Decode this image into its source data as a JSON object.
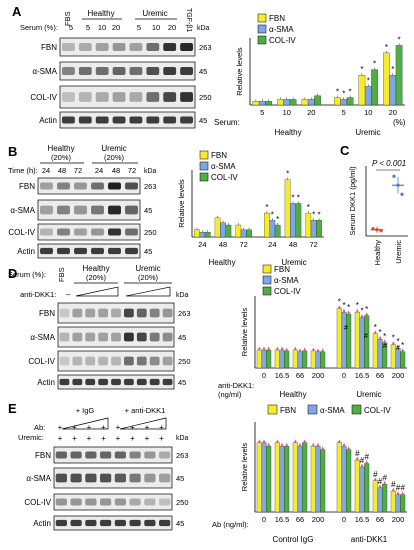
{
  "colors": {
    "fbn": "#f7ec2b",
    "sma": "#7fa7e6",
    "col": "#4fae44",
    "sig": "#d23a5a",
    "dot": "#e8558c"
  },
  "common": {
    "legend": [
      "FBN",
      "α-SMA",
      "COL-IV"
    ],
    "ylabel": "Relative levels",
    "kda": "kDa",
    "healthy": "Healthy",
    "uremic": "Uremic",
    "star": "*",
    "hash": "#"
  },
  "panelA": {
    "letter": "A",
    "blot_labels": [
      "FBN",
      "α-SMA",
      "COL-IV",
      "Actin"
    ],
    "kda_values": [
      "263",
      "45",
      "250",
      "45"
    ],
    "header_fbs": "FBS",
    "header_healthy": "Healthy",
    "header_uremic": "Uremic",
    "header_tgf": "TGF-β1",
    "serum_label": "Serum (%):",
    "serum_values": [
      "5",
      "5",
      "10",
      "20",
      "5",
      "10",
      "20"
    ],
    "chart_serum_label": "Serum:",
    "chart_unit": "(%)"
  },
  "panelB": {
    "letter": "B",
    "blot_labels": [
      "FBN",
      "α-SMA",
      "COL-IV",
      "Actin"
    ],
    "kda_values": [
      "263",
      "45",
      "250",
      "45"
    ],
    "header_healthy": "Healthy",
    "header_healthy2": "(20%)",
    "header_uremic": "Uremic",
    "header_uremic2": "(20%)",
    "time_label": "Time (h):",
    "time_values": [
      "24",
      "48",
      "72",
      "24",
      "48",
      "72"
    ]
  },
  "panelC": {
    "letter": "C",
    "ylabel": "Serum DKK1 (pg/ml)",
    "pvalue": "P < 0.001",
    "xcats": [
      "Healthy",
      "Uremic"
    ]
  },
  "panelD": {
    "letter": "D",
    "blot_labels": [
      "FBN",
      "α-SMA",
      "COL-IV",
      "Actin"
    ],
    "kda_values": [
      "263",
      "45",
      "250",
      "45"
    ],
    "header_fbs": "FBS",
    "header_healthy": "Healthy",
    "header_healthy2": "(20%)",
    "header_uremic": "Uremic",
    "header_uremic2": "(20%)",
    "serum_label": "Serum (%):",
    "anti_label": "anti-DKK1:",
    "anti_dash": "–",
    "chart_anti_label": "anti-DKK1:",
    "chart_unit": "(ng/ml)",
    "chart_x": [
      "0",
      "16.5",
      "66",
      "200",
      "0",
      "16.5",
      "66",
      "200"
    ]
  },
  "panelE": {
    "letter": "E",
    "blot_labels": [
      "FBN",
      "α-SMA",
      "COL-IV",
      "Actin"
    ],
    "kda_values": [
      "263",
      "45",
      "250",
      "45"
    ],
    "igg": "+ IgG",
    "anti": "+ anti-DKK1",
    "ab_label": "Ab:",
    "uremic_label": "Uremic:",
    "plus": "+",
    "chart_ab_label": "Ab (ng/ml):",
    "chart_x": [
      "0",
      "16.5",
      "66",
      "200",
      "0",
      "16.5",
      "66",
      "200"
    ],
    "group1": "Control IgG",
    "group2": "anti-DKK1"
  },
  "chart_data": [
    {
      "panel": "A",
      "type": "bar",
      "categories": [
        "Healthy 5",
        "Healthy 10",
        "Healthy 20",
        "Uremic 5",
        "Uremic 10",
        "Uremic 20"
      ],
      "series": [
        {
          "name": "FBN",
          "values": [
            1.0,
            1.5,
            1.5,
            2.0,
            8.0,
            14.0
          ]
        },
        {
          "name": "α-SMA",
          "values": [
            1.0,
            1.5,
            1.5,
            1.5,
            5.0,
            8.0
          ]
        },
        {
          "name": "COL-IV",
          "values": [
            1.0,
            1.5,
            2.5,
            2.0,
            9.5,
            16.0
          ]
        }
      ],
      "ylim": [
        0,
        18
      ]
    },
    {
      "panel": "B",
      "type": "bar",
      "categories": [
        "Healthy 24",
        "Healthy 48",
        "Healthy 72",
        "Uremic 24",
        "Uremic 48",
        "Uremic 72"
      ],
      "series": [
        {
          "name": "FBN",
          "values": [
            1.5,
            4.0,
            2.5,
            5.0,
            12.0,
            5.0
          ]
        },
        {
          "name": "α-SMA",
          "values": [
            1.0,
            3.0,
            1.5,
            3.5,
            7.0,
            3.5
          ]
        },
        {
          "name": "COL-IV",
          "values": [
            1.0,
            2.5,
            1.5,
            2.5,
            7.0,
            3.5
          ]
        }
      ],
      "ylim": [
        0,
        14
      ]
    },
    {
      "panel": "C",
      "type": "scatter",
      "categories": [
        "Healthy",
        "Uremic"
      ],
      "values": [
        180,
        1450
      ],
      "ylim": [
        0,
        2000
      ]
    },
    {
      "panel": "D",
      "type": "bar",
      "categories": [
        "Healthy 0",
        "Healthy 16.5",
        "Healthy 66",
        "Healthy 200",
        "Uremic 0",
        "Uremic 16.5",
        "Uremic 66",
        "Uremic 200"
      ],
      "series": [
        {
          "name": "FBN",
          "values": [
            1.0,
            1.0,
            1.0,
            0.95,
            3.3,
            3.1,
            1.9,
            1.3
          ]
        },
        {
          "name": "α-SMA",
          "values": [
            1.0,
            1.0,
            0.9,
            0.9,
            3.1,
            2.8,
            1.6,
            1.1
          ]
        },
        {
          "name": "COL-IV",
          "values": [
            1.0,
            0.95,
            0.95,
            0.9,
            3.0,
            2.9,
            1.4,
            0.9
          ]
        }
      ],
      "ylim": [
        0,
        4
      ]
    },
    {
      "panel": "E",
      "type": "bar",
      "categories": [
        "Control IgG 0",
        "Control IgG 16.5",
        "Control IgG 66",
        "Control IgG 200",
        "anti-DKK1 0",
        "anti-DKK1 16.5",
        "anti-DKK1 66",
        "anti-DKK1 200"
      ],
      "series": [
        {
          "name": "FBN",
          "values": [
            1.0,
            1.0,
            1.0,
            0.95,
            1.0,
            0.75,
            0.45,
            0.3
          ]
        },
        {
          "name": "α-SMA",
          "values": [
            1.0,
            0.95,
            0.95,
            0.95,
            0.95,
            0.65,
            0.35,
            0.25
          ]
        },
        {
          "name": "COL-IV",
          "values": [
            0.95,
            0.95,
            1.0,
            0.9,
            0.9,
            0.7,
            0.4,
            0.25
          ]
        }
      ],
      "ylim": [
        0,
        1.3
      ]
    }
  ]
}
